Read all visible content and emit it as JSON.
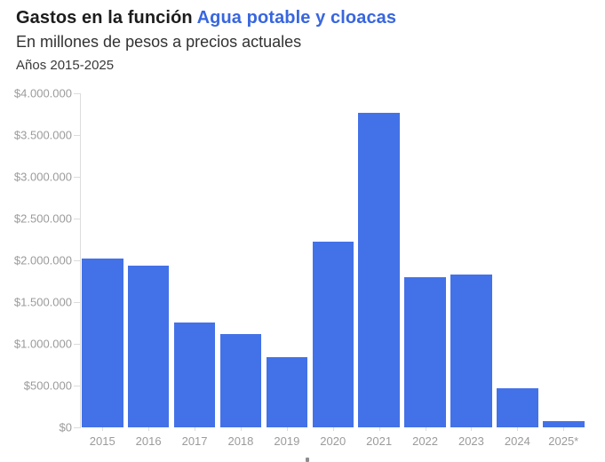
{
  "header": {
    "title_prefix": "Gastos en la función ",
    "title_highlight": "Agua potable y cloacas",
    "subtitle": "En millones de pesos a precios actuales",
    "period": "Años 2015-2025"
  },
  "colors": {
    "background": "#ffffff",
    "title": "#1c1c1c",
    "title_highlight": "#3866df",
    "subtitle": "#323232",
    "period": "#3a3a3a",
    "bar": "#4372e8",
    "axis_label": "#9b9b9b",
    "axis_line": "#dcdcdc"
  },
  "chart_data": {
    "type": "bar",
    "title": "Gastos en la función Agua potable y cloacas",
    "subtitle": "En millones de pesos a precios actuales",
    "period_note": "Años 2015-2025",
    "categories": [
      "2015",
      "2016",
      "2017",
      "2018",
      "2019",
      "2020",
      "2021",
      "2022",
      "2023",
      "2024",
      "2025*"
    ],
    "values": [
      2020000,
      1935000,
      1260000,
      1115000,
      845000,
      2225000,
      3765000,
      1795000,
      1830000,
      465000,
      70000
    ],
    "xlabel": "",
    "ylabel": "",
    "ylim": [
      0,
      4000000
    ],
    "ytick_step": 500000,
    "ytick_labels_bottom_to_top": [
      "$0",
      "$500.000",
      "$1.000.000",
      "$1.500.000",
      "$2.000.000",
      "$2.500.000",
      "$3.000.000",
      "$3.500.000",
      "$4.000.000"
    ],
    "grid": false,
    "legend": false,
    "bar_color": "#4372e8"
  }
}
